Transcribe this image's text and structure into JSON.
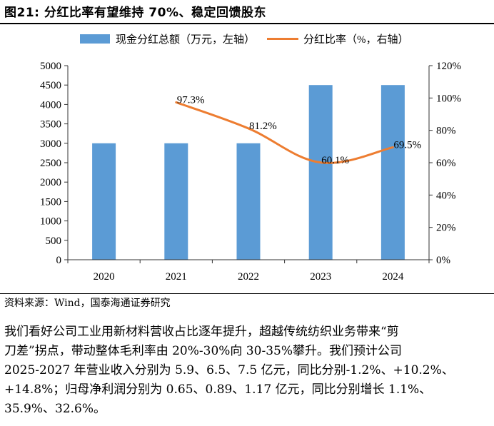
{
  "figure": {
    "title": "图21:  分红比率有望维持 70%、稳定回馈股东"
  },
  "chart_data": {
    "type": "bar+line",
    "categories": [
      "2020",
      "2021",
      "2022",
      "2023",
      "2024"
    ],
    "series": [
      {
        "name": "现金分红总额（万元，左轴）",
        "type": "bar",
        "axis": "left",
        "values": [
          3000,
          3000,
          3000,
          4500,
          4500
        ],
        "color": "#5b9bd5"
      },
      {
        "name": "分红比率（%，右轴）",
        "type": "line",
        "axis": "right",
        "values": [
          null,
          97.3,
          81.2,
          60.1,
          69.5
        ],
        "color": "#ed7d31",
        "labels": [
          "",
          "97.3%",
          "81.2%",
          "60.1%",
          "69.5%"
        ]
      }
    ],
    "left_axis": {
      "min": 0,
      "max": 5000,
      "step": 500,
      "ticks": [
        "0",
        "500",
        "1000",
        "1500",
        "2000",
        "2500",
        "3000",
        "3500",
        "4000",
        "4500",
        "5000"
      ]
    },
    "right_axis": {
      "min": 0,
      "max": 120,
      "step": 20,
      "ticks": [
        "0%",
        "20%",
        "40%",
        "60%",
        "80%",
        "100%",
        "120%"
      ]
    },
    "legend_placement": "top",
    "grid": false
  },
  "source": "资料来源：Wind，国泰海通证券研究",
  "paragraph": [
    "我们看好公司工业用新材料营收占比逐年提升，超越传统纺织业务带来“剪",
    "刀差”拐点，带动整体毛利率由 20%-30%向 30-35%攀升。我们预计公司",
    "2025-2027 年营业收入分别为 5.9、6.5、7.5 亿元，同比分别-1.2%、+10.2%、",
    "+14.8%；归母净利润分别为 0.65、0.89、1.17 亿元，同比分别增长 1.1%、",
    "35.9%、32.6%。"
  ]
}
